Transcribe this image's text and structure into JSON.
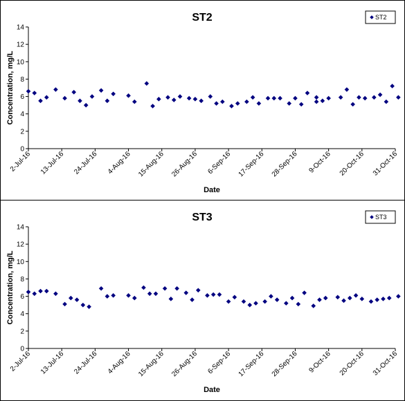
{
  "chart_data": [
    {
      "type": "scatter",
      "title": "ST2",
      "xlabel": "Date",
      "ylabel": "Concentration, mg/L",
      "ylim": [
        0,
        14
      ],
      "yticks": [
        0,
        2,
        4,
        6,
        8,
        10,
        12,
        14
      ],
      "xlim": [
        "2016-07-02",
        "2016-10-31"
      ],
      "xtick_labels": [
        "2-Jul-16",
        "13-Jul-16",
        "24-Jul-16",
        "4-Aug-16",
        "15-Aug-16",
        "26-Aug-16",
        "6-Sep-16",
        "17-Sep-16",
        "28-Sep-16",
        "9-Oct-16",
        "20-Oct-16",
        "31-Oct-16"
      ],
      "grid": false,
      "legend": "top-right",
      "marker_color": "#000080",
      "series": [
        {
          "name": "ST2",
          "points": [
            [
              "2016-07-02",
              6.6
            ],
            [
              "2016-07-04",
              6.4
            ],
            [
              "2016-07-06",
              5.5
            ],
            [
              "2016-07-08",
              5.9
            ],
            [
              "2016-07-11",
              6.8
            ],
            [
              "2016-07-14",
              5.8
            ],
            [
              "2016-07-17",
              6.5
            ],
            [
              "2016-07-19",
              5.5
            ],
            [
              "2016-07-21",
              5.0
            ],
            [
              "2016-07-23",
              6.0
            ],
            [
              "2016-07-26",
              6.7
            ],
            [
              "2016-07-28",
              5.5
            ],
            [
              "2016-07-30",
              6.3
            ],
            [
              "2016-08-04",
              6.1
            ],
            [
              "2016-08-06",
              5.4
            ],
            [
              "2016-08-10",
              7.5
            ],
            [
              "2016-08-12",
              4.9
            ],
            [
              "2016-08-14",
              5.7
            ],
            [
              "2016-08-17",
              5.9
            ],
            [
              "2016-08-19",
              5.6
            ],
            [
              "2016-08-21",
              6.0
            ],
            [
              "2016-08-24",
              5.8
            ],
            [
              "2016-08-26",
              5.7
            ],
            [
              "2016-08-28",
              5.5
            ],
            [
              "2016-08-31",
              6.0
            ],
            [
              "2016-09-02",
              5.2
            ],
            [
              "2016-09-04",
              5.4
            ],
            [
              "2016-09-07",
              4.9
            ],
            [
              "2016-09-09",
              5.2
            ],
            [
              "2016-09-12",
              5.4
            ],
            [
              "2016-09-14",
              5.9
            ],
            [
              "2016-09-16",
              5.2
            ],
            [
              "2016-09-19",
              5.8
            ],
            [
              "2016-09-21",
              5.8
            ],
            [
              "2016-09-23",
              5.8
            ],
            [
              "2016-09-26",
              5.2
            ],
            [
              "2016-09-28",
              5.8
            ],
            [
              "2016-09-30",
              5.1
            ],
            [
              "2016-10-02",
              6.4
            ],
            [
              "2016-10-05",
              5.9
            ],
            [
              "2016-10-05",
              5.4
            ],
            [
              "2016-10-07",
              5.5
            ],
            [
              "2016-10-09",
              5.8
            ],
            [
              "2016-10-13",
              5.9
            ],
            [
              "2016-10-15",
              6.8
            ],
            [
              "2016-10-17",
              5.1
            ],
            [
              "2016-10-19",
              5.9
            ],
            [
              "2016-10-21",
              5.8
            ],
            [
              "2016-10-24",
              5.9
            ],
            [
              "2016-10-26",
              6.2
            ],
            [
              "2016-10-28",
              5.4
            ],
            [
              "2016-10-30",
              7.2
            ],
            [
              "2016-11-01",
              5.9
            ]
          ]
        }
      ]
    },
    {
      "type": "scatter",
      "title": "ST3",
      "xlabel": "Date",
      "ylabel": "Concentration, mg/L",
      "ylim": [
        0,
        14
      ],
      "yticks": [
        0,
        2,
        4,
        6,
        8,
        10,
        12,
        14
      ],
      "xlim": [
        "2016-07-02",
        "2016-10-31"
      ],
      "xtick_labels": [
        "2-Jul-16",
        "13-Jul-16",
        "24-Jul-16",
        "4-Aug-16",
        "15-Aug-16",
        "26-Aug-16",
        "6-Sep-16",
        "17-Sep-16",
        "28-Sep-16",
        "9-Oct-16",
        "20-Oct-16",
        "31-Oct-16"
      ],
      "grid": false,
      "legend": "top-right",
      "marker_color": "#000080",
      "series": [
        {
          "name": "ST3",
          "points": [
            [
              "2016-07-02",
              6.5
            ],
            [
              "2016-07-04",
              6.3
            ],
            [
              "2016-07-06",
              6.6
            ],
            [
              "2016-07-08",
              6.6
            ],
            [
              "2016-07-11",
              6.3
            ],
            [
              "2016-07-14",
              5.1
            ],
            [
              "2016-07-16",
              5.8
            ],
            [
              "2016-07-18",
              5.6
            ],
            [
              "2016-07-20",
              5.0
            ],
            [
              "2016-07-22",
              4.8
            ],
            [
              "2016-07-26",
              6.9
            ],
            [
              "2016-07-28",
              6.0
            ],
            [
              "2016-07-30",
              6.1
            ],
            [
              "2016-08-04",
              6.1
            ],
            [
              "2016-08-06",
              5.8
            ],
            [
              "2016-08-09",
              7.0
            ],
            [
              "2016-08-11",
              6.3
            ],
            [
              "2016-08-13",
              6.3
            ],
            [
              "2016-08-16",
              6.9
            ],
            [
              "2016-08-18",
              5.7
            ],
            [
              "2016-08-20",
              6.9
            ],
            [
              "2016-08-23",
              6.4
            ],
            [
              "2016-08-25",
              5.6
            ],
            [
              "2016-08-27",
              6.7
            ],
            [
              "2016-08-30",
              6.1
            ],
            [
              "2016-09-01",
              6.2
            ],
            [
              "2016-09-03",
              6.2
            ],
            [
              "2016-09-06",
              5.4
            ],
            [
              "2016-09-08",
              5.9
            ],
            [
              "2016-09-11",
              5.4
            ],
            [
              "2016-09-13",
              5.0
            ],
            [
              "2016-09-15",
              5.2
            ],
            [
              "2016-09-18",
              5.4
            ],
            [
              "2016-09-20",
              6.0
            ],
            [
              "2016-09-22",
              5.6
            ],
            [
              "2016-09-25",
              5.2
            ],
            [
              "2016-09-27",
              5.8
            ],
            [
              "2016-09-29",
              5.1
            ],
            [
              "2016-10-01",
              6.4
            ],
            [
              "2016-10-04",
              4.9
            ],
            [
              "2016-10-06",
              5.6
            ],
            [
              "2016-10-08",
              5.8
            ],
            [
              "2016-10-12",
              5.9
            ],
            [
              "2016-10-14",
              5.5
            ],
            [
              "2016-10-16",
              5.8
            ],
            [
              "2016-10-18",
              6.1
            ],
            [
              "2016-10-20",
              5.7
            ],
            [
              "2016-10-23",
              5.4
            ],
            [
              "2016-10-25",
              5.6
            ],
            [
              "2016-10-27",
              5.7
            ],
            [
              "2016-10-29",
              5.8
            ],
            [
              "2016-11-01",
              6.0
            ]
          ]
        }
      ]
    }
  ]
}
